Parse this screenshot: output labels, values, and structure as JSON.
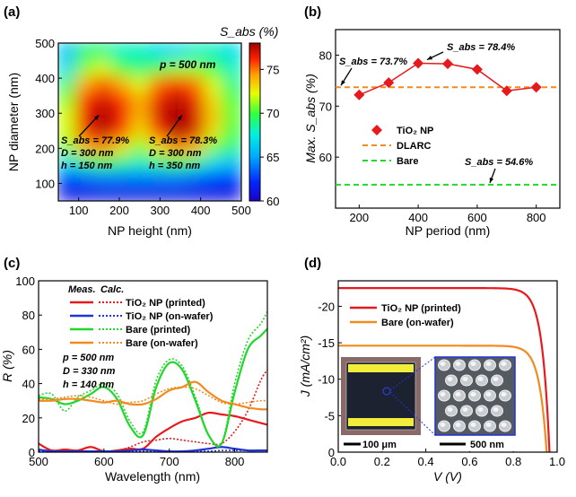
{
  "chart_data": [
    {
      "panel": "(a)",
      "type": "heatmap",
      "xlabel": "NP height (nm)",
      "ylabel": "NP diameter (nm)",
      "x_ticks": [
        100,
        200,
        300,
        400,
        500
      ],
      "y_ticks": [
        100,
        200,
        300,
        400,
        500
      ],
      "xlim": [
        50,
        500
      ],
      "ylim": [
        50,
        500
      ],
      "colorbar_label": "S_abs (%)",
      "colorbar_ticks": [
        60,
        65,
        70,
        75
      ],
      "colorbar_range": [
        60,
        78
      ],
      "grid": [
        [
          61,
          61,
          61,
          61,
          61,
          61,
          61,
          61,
          61,
          61
        ],
        [
          63,
          63.5,
          64,
          64,
          64,
          64,
          64,
          63.5,
          63,
          62.5
        ],
        [
          67,
          69,
          70,
          69,
          68,
          69,
          70,
          69,
          67,
          66
        ],
        [
          71,
          74,
          75,
          73,
          71,
          73,
          75,
          74,
          71,
          69
        ],
        [
          72,
          76.5,
          77.5,
          76,
          73,
          76,
          78,
          77,
          73,
          70
        ],
        [
          72,
          76.5,
          77.9,
          76.5,
          74,
          77,
          78.3,
          77,
          73.5,
          70.5
        ],
        [
          71,
          76,
          77,
          76,
          74,
          76.5,
          77.5,
          76.5,
          73,
          70
        ],
        [
          69,
          74,
          75.5,
          74,
          72,
          75,
          76,
          75,
          72,
          69
        ],
        [
          67,
          71,
          72,
          70,
          69,
          70,
          71,
          71,
          70,
          68
        ],
        [
          66,
          69,
          69,
          68,
          68,
          67,
          67,
          68,
          68,
          67
        ]
      ],
      "annotations": {
        "period": "p = 500 nm",
        "left": [
          "S_abs = 77.9%",
          "D = 300 nm",
          "h = 150 nm"
        ],
        "right": [
          "S_abs = 78.3%",
          "D = 300 nm",
          "h = 350 nm"
        ]
      },
      "markers": [
        [
          150,
          300
        ],
        [
          350,
          300
        ]
      ]
    },
    {
      "panel": "(b)",
      "type": "line",
      "xlabel": "NP period (nm)",
      "ylabel": "Max. S_abs (%)",
      "x_ticks": [
        200,
        400,
        600,
        800
      ],
      "y_ticks": [
        60,
        70,
        80
      ],
      "xlim": [
        120,
        880
      ],
      "ylim": [
        50,
        85
      ],
      "x": [
        200,
        300,
        400,
        500,
        600,
        700,
        800
      ],
      "series": [
        {
          "name": "TiO₂ NP",
          "values": [
            72.2,
            74.6,
            78.4,
            78.3,
            77.2,
            73.0,
            73.7
          ],
          "color": "#e8191c"
        },
        {
          "name": "DLARC",
          "constant": 73.7,
          "color": "#f28a1f"
        },
        {
          "name": "Bare",
          "constant": 54.6,
          "color": "#21d72a"
        }
      ],
      "annotations": [
        "S_abs = 73.7%",
        "S_abs = 78.4%",
        "S_abs = 54.6%"
      ]
    },
    {
      "panel": "(c)",
      "type": "line",
      "xlabel": "Wavelength (nm)",
      "ylabel": "R (%)",
      "x_ticks": [
        500,
        600,
        700,
        800
      ],
      "y_ticks": [
        0,
        20,
        40,
        60,
        80,
        100
      ],
      "xlim": [
        500,
        850
      ],
      "ylim": [
        0,
        100
      ],
      "legend_headers": [
        "Meas.",
        "Calc."
      ],
      "x": [
        500,
        520,
        540,
        560,
        580,
        600,
        620,
        640,
        660,
        680,
        700,
        720,
        740,
        760,
        780,
        800,
        820,
        840,
        850
      ],
      "series": [
        {
          "name": "TiO₂ NP (printed)",
          "color": "#e8191c",
          "meas": [
            5,
            1,
            1.5,
            1,
            3,
            0.5,
            1,
            2,
            2,
            9,
            14,
            18,
            20,
            23,
            22,
            21,
            19,
            17,
            16
          ],
          "calc": [
            1,
            0.5,
            0.5,
            1,
            0.5,
            0.5,
            1,
            3,
            6,
            7,
            8,
            7,
            6,
            5,
            5,
            12,
            24,
            42,
            48
          ]
        },
        {
          "name": "TiO₂ NP (on-wafer)",
          "color": "#1f33d9",
          "meas": [
            1.5,
            0.5,
            0.5,
            0.5,
            0.5,
            0.5,
            0.5,
            1,
            1.5,
            1,
            0.5,
            0.5,
            1,
            2,
            3,
            2,
            1,
            1,
            1
          ],
          "calc": [
            0.5,
            0.5,
            0.5,
            0.5,
            0.5,
            0.5,
            0.5,
            0.5,
            0.5,
            0.5,
            0.5,
            0.5,
            0.5,
            0.5,
            1,
            1,
            1,
            1,
            1
          ]
        },
        {
          "name": "Bare (printed)",
          "color": "#21d72a",
          "meas": [
            32,
            31,
            28,
            30,
            34,
            38,
            31,
            15,
            10,
            38,
            52,
            48,
            30,
            10,
            5,
            35,
            60,
            68,
            72
          ],
          "calc": [
            33,
            34,
            24,
            32,
            36,
            40,
            34,
            18,
            12,
            42,
            54,
            50,
            32,
            10,
            5,
            40,
            65,
            75,
            82
          ]
        },
        {
          "name": "Bare (on-wafer)",
          "color": "#f28a1f",
          "meas": [
            30,
            30,
            31,
            31,
            30,
            29,
            30,
            28,
            28,
            31,
            36,
            38,
            41,
            35,
            30,
            28,
            26,
            25,
            25
          ],
          "calc": [
            31,
            31,
            32,
            33,
            32,
            30,
            28,
            29,
            30,
            34,
            37,
            38,
            37,
            33,
            29,
            28,
            29,
            30,
            30
          ]
        }
      ],
      "annotations": [
        "p = 500 nm",
        "D = 330 nm",
        "h = 140 nm"
      ]
    },
    {
      "panel": "(d)",
      "type": "line",
      "xlabel": "V (V)",
      "ylabel": "J (mA/cm²)",
      "x_ticks": [
        0.0,
        0.2,
        0.4,
        0.6,
        0.8,
        1.0
      ],
      "x_tick_labels": [
        "0.0",
        "0.2",
        "0.4",
        "0.6",
        "0.8",
        "1.0"
      ],
      "y_ticks": [
        0,
        -5,
        -10,
        -15,
        -20
      ],
      "xlim": [
        0.0,
        1.0
      ],
      "ylim": [
        0,
        -23.5
      ],
      "series": [
        {
          "name": "TiO₂ NP (printed)",
          "color": "#e8191c",
          "jsc": -22.5,
          "voc": 0.965
        },
        {
          "name": "Bare (on-wafer)",
          "color": "#f28a1f",
          "jsc": -14.6,
          "voc": 0.952
        }
      ],
      "insets": {
        "scale_left": "100 μm",
        "scale_right": "500 nm"
      }
    }
  ]
}
